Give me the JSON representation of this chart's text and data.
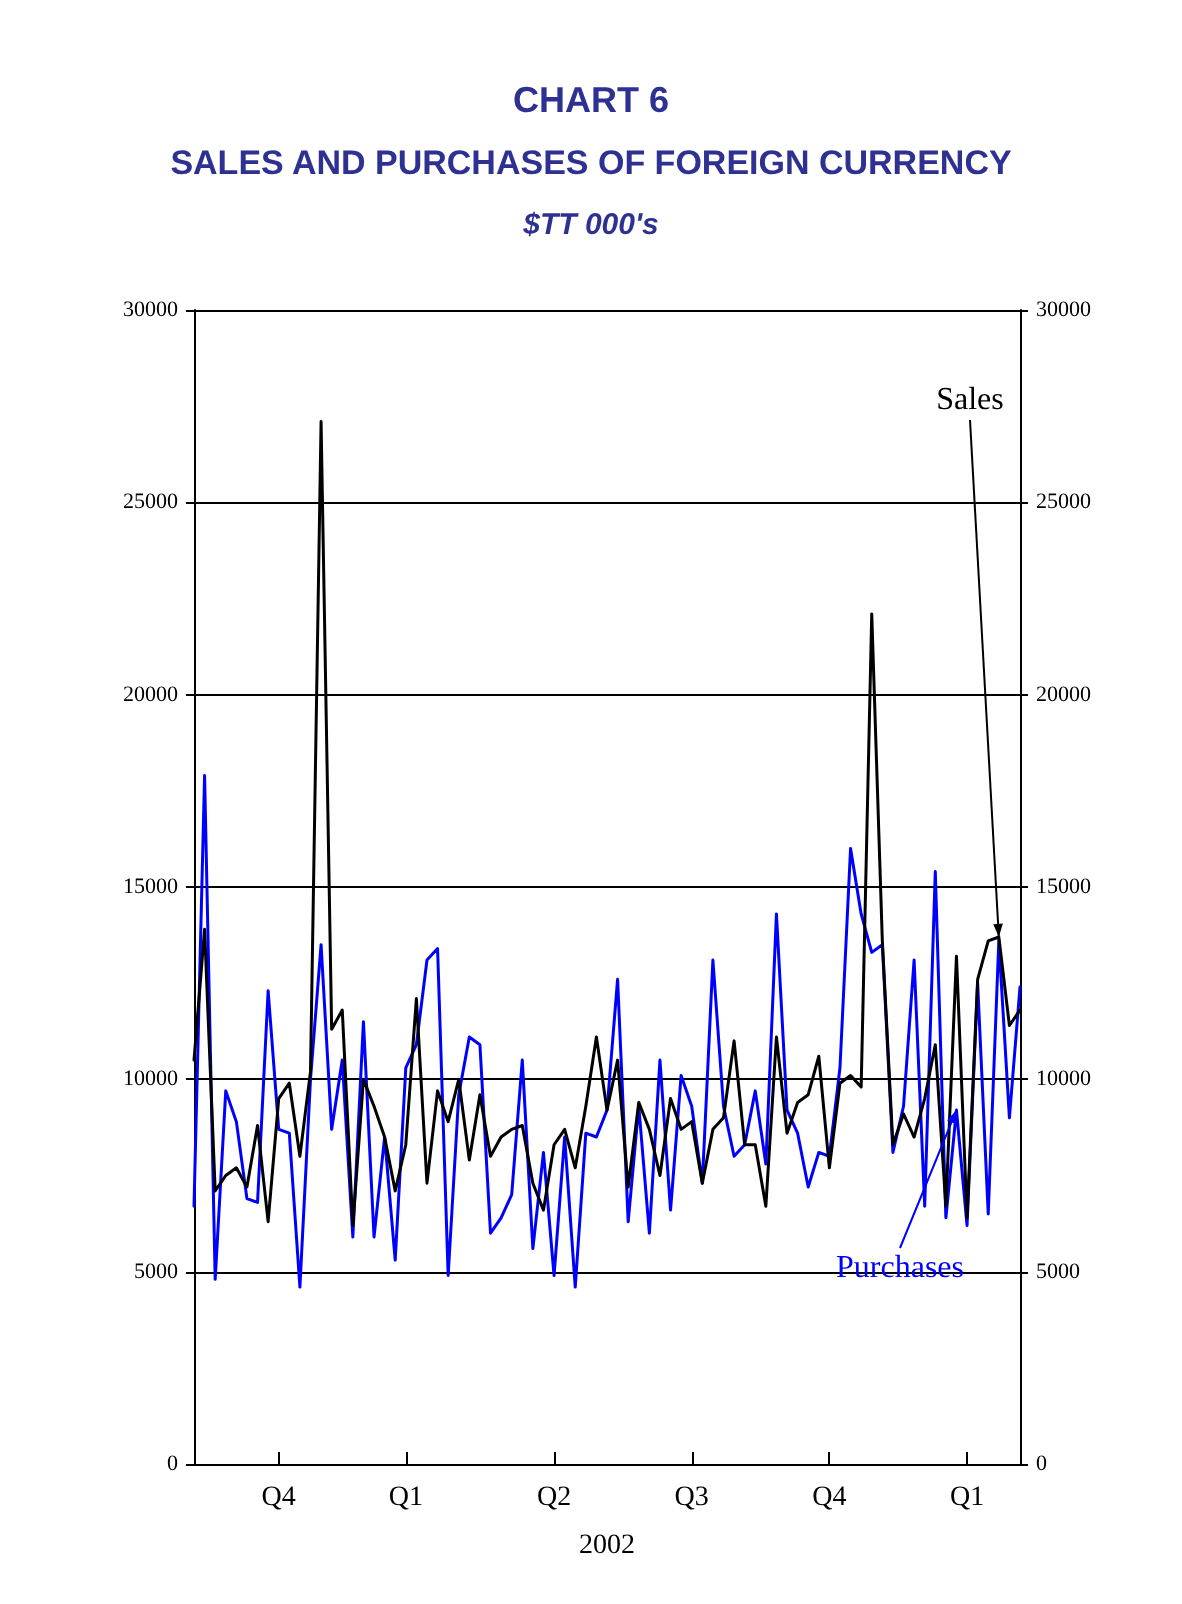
{
  "chart_data": {
    "type": "line",
    "title": "CHART 6",
    "subtitle": "SALES AND PURCHASES OF FOREIGN CURRENCY",
    "ylabel": "$TT 000's",
    "xlabel": "2002",
    "categories": [
      null,
      null,
      null,
      null,
      null,
      null,
      null,
      null,
      "Q4",
      null,
      null,
      null,
      null,
      null,
      null,
      null,
      null,
      null,
      null,
      null,
      "Q1",
      null,
      null,
      null,
      null,
      null,
      null,
      null,
      null,
      null,
      null,
      null,
      null,
      null,
      "Q2",
      null,
      null,
      null,
      null,
      null,
      null,
      null,
      null,
      null,
      null,
      null,
      null,
      "Q3",
      null,
      null,
      null,
      null,
      null,
      null,
      null,
      null,
      null,
      null,
      null,
      null,
      "Q4",
      null,
      null,
      null,
      null,
      null,
      null,
      null,
      null,
      null,
      null,
      null,
      null,
      "Q1",
      null,
      null,
      null,
      null,
      null
    ],
    "series": [
      {
        "name": "Sales",
        "color": "#000000",
        "values": [
          10500,
          13900,
          7100,
          7500,
          7700,
          7200,
          8800,
          6300,
          9500,
          9900,
          8000,
          10200,
          27100,
          11300,
          11800,
          6200,
          10000,
          9300,
          8500,
          7100,
          8300,
          12100,
          7300,
          9700,
          8900,
          10000,
          7900,
          9600,
          8000,
          8500,
          8700,
          8800,
          7300,
          6600,
          8300,
          8700,
          7700,
          9300,
          11100,
          9200,
          10500,
          7200,
          9400,
          8700,
          7500,
          9500,
          8700,
          8900,
          7300,
          8700,
          9000,
          11000,
          8300,
          8300,
          6700,
          11100,
          8600,
          9400,
          9600,
          10600,
          7700,
          9900,
          10100,
          9800,
          22100,
          13600,
          8300,
          9100,
          8500,
          9500,
          10900,
          6700,
          13200,
          6400,
          12600,
          13600,
          13700,
          11400,
          11800
        ]
      },
      {
        "name": "Purchases",
        "color": "#0000ff",
        "values": [
          6700,
          17900,
          4800,
          9700,
          8900,
          6900,
          6800,
          12300,
          8700,
          8600,
          4600,
          10000,
          13500,
          8700,
          10500,
          5900,
          11500,
          5900,
          8500,
          5300,
          10300,
          10900,
          13100,
          13400,
          4900,
          9600,
          11100,
          10900,
          6000,
          6400,
          7000,
          10500,
          5600,
          8100,
          4900,
          8500,
          4600,
          8600,
          8500,
          9200,
          12600,
          6300,
          9300,
          6000,
          10500,
          6600,
          10100,
          9300,
          7300,
          13100,
          9300,
          8000,
          8300,
          9700,
          7800,
          14300,
          9200,
          8600,
          7200,
          8100,
          8000,
          10300,
          16000,
          14300,
          13300,
          13500,
          8100,
          9300,
          13100,
          6700,
          15400,
          6400,
          9200,
          6200,
          12500,
          6500,
          13600,
          9000,
          12400
        ]
      }
    ],
    "ylim": [
      0,
      30000
    ],
    "yticks": [
      0,
      5000,
      10000,
      15000,
      20000,
      25000,
      30000
    ],
    "y2lim": [
      0,
      30000
    ],
    "y2ticks": [
      0,
      5000,
      10000,
      15000,
      20000,
      25000,
      30000
    ],
    "grid": "y",
    "legend": false,
    "marker": "none",
    "line_style": "solid"
  }
}
